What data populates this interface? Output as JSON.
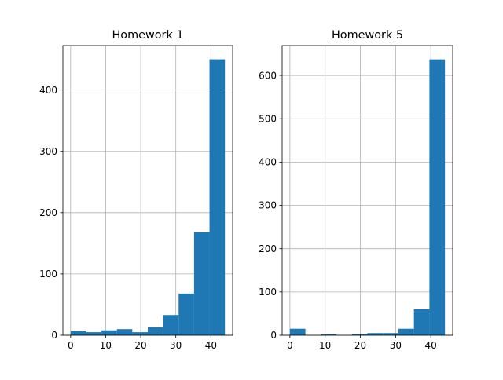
{
  "chart_data": [
    {
      "type": "bar",
      "title": "Homework 1",
      "xlabel": "",
      "ylabel": "",
      "bin_edges": [
        0,
        4.4,
        8.8,
        13.2,
        17.6,
        22,
        26.4,
        30.8,
        35.2,
        39.6,
        44
      ],
      "values": [
        7,
        5,
        8,
        10,
        5,
        13,
        33,
        68,
        168,
        450
      ],
      "xlim": [
        -2.2,
        46.2
      ],
      "ylim": [
        0,
        472.5
      ],
      "xticks": [
        0,
        10,
        20,
        30,
        40
      ],
      "yticks": [
        0,
        100,
        200,
        300,
        400
      ],
      "grid": true,
      "color": "#1f77b4"
    },
    {
      "type": "bar",
      "title": "Homework 5",
      "xlabel": "",
      "ylabel": "",
      "bin_edges": [
        0,
        4.4,
        8.8,
        13.2,
        17.6,
        22,
        26.4,
        30.8,
        35.2,
        39.6,
        44
      ],
      "values": [
        15,
        0,
        2,
        0,
        2,
        5,
        5,
        15,
        60,
        637
      ],
      "xlim": [
        -2.2,
        46.2
      ],
      "ylim": [
        0,
        669
      ],
      "xticks": [
        0,
        10,
        20,
        30,
        40
      ],
      "yticks": [
        0,
        100,
        200,
        300,
        400,
        500,
        600
      ],
      "grid": true,
      "color": "#1f77b4"
    }
  ]
}
